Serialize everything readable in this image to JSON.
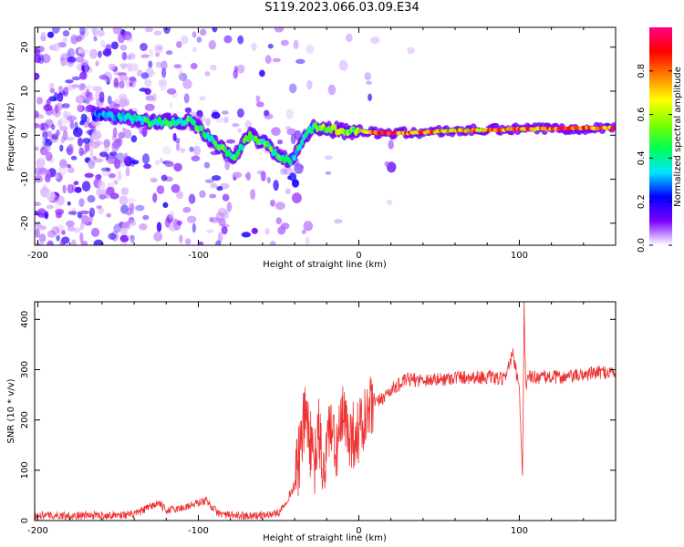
{
  "title": "S119.2023.066.03.09.E34",
  "chart_data": [
    {
      "type": "heatmap",
      "xlabel": "Height of straight line (km)",
      "ylabel": "Frequency (Hz)",
      "xlim": [
        -202,
        160
      ],
      "ylim": [
        -25,
        24.5
      ],
      "xticks": [
        -200,
        -100,
        0,
        100
      ],
      "yticks": [
        -20,
        -10,
        0,
        10,
        20
      ],
      "colorbar": {
        "label": "Normalized spectral amplitude",
        "range": [
          0,
          1
        ],
        "ticks": [
          0.0,
          0.2,
          0.4,
          0.6,
          0.8
        ],
        "colors": [
          "#ffffff",
          "#7b00ff",
          "#0000ff",
          "#00e5ff",
          "#00ff55",
          "#7fff00",
          "#ffff00",
          "#ff8000",
          "#ff0000",
          "#ff0080"
        ]
      },
      "ridge": {
        "x": [
          -160,
          -145,
          -130,
          -115,
          -105,
          -95,
          -85,
          -78,
          -68,
          -58,
          -52,
          -46,
          -42,
          -35,
          -28,
          -20,
          -10,
          0,
          10,
          30,
          60,
          90,
          120,
          160
        ],
        "freq": [
          4.5,
          4,
          3,
          3,
          3.5,
          0,
          -3,
          -5,
          0,
          -2,
          -4,
          -5.5,
          -6,
          -1,
          2,
          1.5,
          1,
          1,
          0.5,
          0.5,
          1,
          1.3,
          1.5,
          1.7
        ],
        "amplitude": [
          0.3,
          0.35,
          0.45,
          0.45,
          0.5,
          0.45,
          0.5,
          0.45,
          0.45,
          0.5,
          0.5,
          0.45,
          0.4,
          0.45,
          0.5,
          0.55,
          0.6,
          0.6,
          0.95,
          0.8,
          0.75,
          0.8,
          0.85,
          0.9
        ]
      }
    },
    {
      "type": "line",
      "xlabel": "Height of straight line (km)",
      "ylabel": "SNR (10 * v/v)",
      "xlim": [
        -202,
        160
      ],
      "ylim": [
        0,
        435
      ],
      "xticks": [
        -200,
        -100,
        0,
        100
      ],
      "yticks": [
        0,
        100,
        200,
        300,
        400
      ],
      "color": "#ee3333",
      "x": [
        -200,
        -170,
        -140,
        -125,
        -120,
        -110,
        -95,
        -88,
        -80,
        -70,
        -60,
        -50,
        -45,
        -40,
        -36,
        -33,
        -28,
        -25,
        -22,
        -18,
        -15,
        -10,
        -5,
        0,
        5,
        10,
        15,
        20,
        25,
        30,
        40,
        50,
        60,
        70,
        80,
        90,
        96,
        100,
        102,
        103,
        104,
        106,
        110,
        120,
        130,
        140,
        150,
        160
      ],
      "y": [
        10,
        10,
        12,
        35,
        20,
        25,
        40,
        15,
        10,
        10,
        10,
        15,
        40,
        70,
        150,
        220,
        100,
        180,
        90,
        200,
        130,
        200,
        170,
        175,
        205,
        230,
        245,
        260,
        270,
        280,
        280,
        280,
        285,
        285,
        285,
        280,
        330,
        260,
        80,
        430,
        270,
        285,
        285,
        285,
        285,
        290,
        295,
        295
      ]
    }
  ]
}
